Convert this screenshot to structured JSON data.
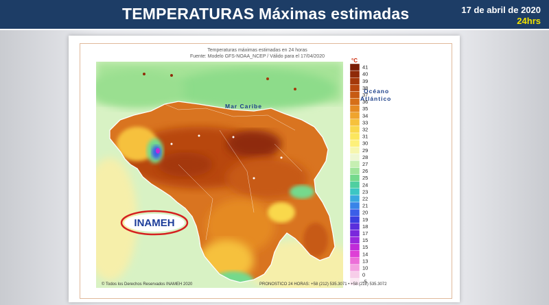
{
  "header": {
    "title": "TEMPERATURAS  Máximas estimadas",
    "date": "17 de abril de 2020",
    "hours": "24hrs"
  },
  "map": {
    "title_line1": "Temperaturas máximas estimadas en 24 horas",
    "title_line2": "Fuente: Modelo GFS-NOAA_NCEP / Válido para el 17/04/2020",
    "sea_label": "Mar Caribe",
    "ocean_label_1": "Océano",
    "ocean_label_2": "Atlántico",
    "logo_text": "INAMEH",
    "footer_left": "© Todos los Derechos Reservados INAMEH 2020",
    "footer_right": "PRONOSTICO 24 HORAS: +58 (212) 535.3071 • +58 (212) 535.3072"
  },
  "legend": {
    "unit": "°C",
    "entries": [
      {
        "label": "41",
        "color": "#7a1e06"
      },
      {
        "label": "40",
        "color": "#8f2a08"
      },
      {
        "label": "39",
        "color": "#a4380a"
      },
      {
        "label": "38",
        "color": "#b8470e"
      },
      {
        "label": "37",
        "color": "#c75a12"
      },
      {
        "label": "36",
        "color": "#d66f18"
      },
      {
        "label": "35",
        "color": "#e58a22"
      },
      {
        "label": "34",
        "color": "#efa42e"
      },
      {
        "label": "33",
        "color": "#f6c13c"
      },
      {
        "label": "32",
        "color": "#f9d84c"
      },
      {
        "label": "31",
        "color": "#fbe65e"
      },
      {
        "label": "30",
        "color": "#fdf07a"
      },
      {
        "label": "29",
        "color": "#f6f6ae"
      },
      {
        "label": "28",
        "color": "#eef7d2"
      },
      {
        "label": "27",
        "color": "#c6efb2"
      },
      {
        "label": "26",
        "color": "#9fe49a"
      },
      {
        "label": "25",
        "color": "#74d98c"
      },
      {
        "label": "24",
        "color": "#4fcfa0"
      },
      {
        "label": "23",
        "color": "#3cc6c4"
      },
      {
        "label": "22",
        "color": "#3aa8e0"
      },
      {
        "label": "21",
        "color": "#3984e8"
      },
      {
        "label": "20",
        "color": "#3b5ee8"
      },
      {
        "label": "19",
        "color": "#3b3fe0"
      },
      {
        "label": "18",
        "color": "#5a2fdc"
      },
      {
        "label": "17",
        "color": "#7a28dc"
      },
      {
        "label": "15",
        "color": "#9a28dc"
      },
      {
        "label": "15",
        "color": "#c02bd8"
      },
      {
        "label": "14",
        "color": "#de40d6"
      },
      {
        "label": "13",
        "color": "#ec6ed8"
      },
      {
        "label": "10",
        "color": "#f3a0e0"
      },
      {
        "label": "0",
        "color": "#f7cde9"
      },
      {
        "label": "-5",
        "color": "#fbe9f3"
      }
    ]
  }
}
